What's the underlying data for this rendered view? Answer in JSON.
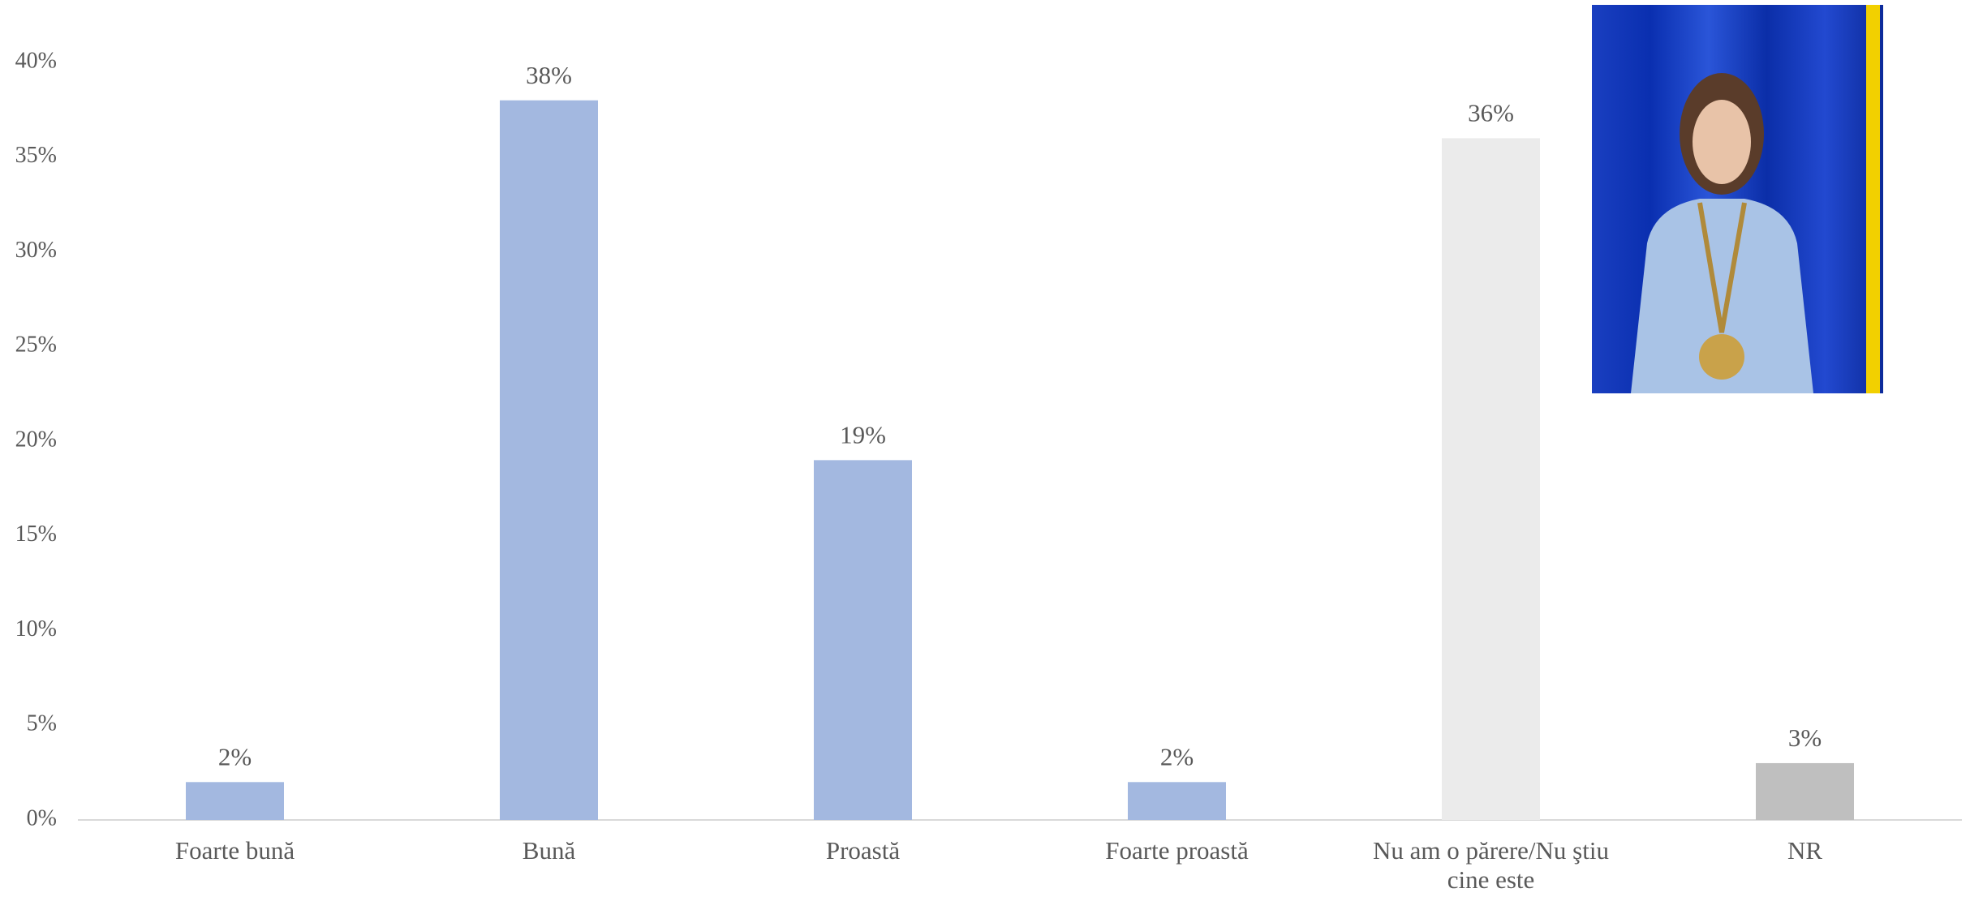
{
  "chart_data": {
    "type": "bar",
    "categories": [
      "Foarte bună",
      "Bună",
      "Proastă",
      "Foarte proastă",
      "Nu am o părere/Nu ştiu cine este",
      "NR"
    ],
    "values": [
      2,
      38,
      19,
      2,
      36,
      3
    ],
    "value_labels": [
      "2%",
      "38%",
      "19%",
      "2%",
      "36%",
      "3%"
    ],
    "colors": [
      "#a3b8e0",
      "#a3b8e0",
      "#a3b8e0",
      "#a3b8e0",
      "#ebebeb",
      "#bfbfbf"
    ],
    "ylim": [
      0,
      40
    ],
    "yticks": [
      {
        "value": 0,
        "label": "0%"
      },
      {
        "value": 5,
        "label": "5%"
      },
      {
        "value": 10,
        "label": "10%"
      },
      {
        "value": 15,
        "label": "15%"
      },
      {
        "value": 20,
        "label": "20%"
      },
      {
        "value": 25,
        "label": "25%"
      },
      {
        "value": 30,
        "label": "30%"
      },
      {
        "value": 35,
        "label": "35%"
      },
      {
        "value": 40,
        "label": "40%"
      }
    ],
    "grid": false
  }
}
